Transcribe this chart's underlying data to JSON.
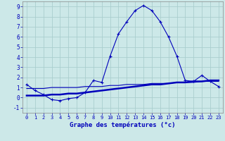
{
  "xlabel": "Graphe des températures (°c)",
  "background_color": "#cce8e8",
  "grid_color": "#aacece",
  "line_color": "#0000bb",
  "xlim": [
    -0.5,
    23.5
  ],
  "ylim": [
    -1.5,
    9.5
  ],
  "xticks": [
    0,
    1,
    2,
    3,
    4,
    5,
    6,
    7,
    8,
    9,
    10,
    11,
    12,
    13,
    14,
    15,
    16,
    17,
    18,
    19,
    20,
    21,
    22,
    23
  ],
  "yticks": [
    -1,
    0,
    1,
    2,
    3,
    4,
    5,
    6,
    7,
    8,
    9
  ],
  "line1_x": [
    0,
    1,
    2,
    3,
    4,
    5,
    6,
    7,
    8,
    9,
    10,
    11,
    12,
    13,
    14,
    15,
    16,
    17,
    18,
    19,
    20,
    21,
    22,
    23
  ],
  "line1_y": [
    1.3,
    0.7,
    0.3,
    -0.2,
    -0.3,
    -0.1,
    0.0,
    0.5,
    1.7,
    1.5,
    4.1,
    6.3,
    7.5,
    8.6,
    9.1,
    8.6,
    7.5,
    6.0,
    4.1,
    1.7,
    1.6,
    2.2,
    1.6,
    1.1
  ],
  "line2_x": [
    0,
    1,
    2,
    3,
    4,
    5,
    6,
    7,
    8,
    9,
    10,
    11,
    12,
    13,
    14,
    15,
    16,
    17,
    18,
    19,
    20,
    21,
    22,
    23
  ],
  "line2_y": [
    0.2,
    0.2,
    0.2,
    0.3,
    0.3,
    0.4,
    0.4,
    0.5,
    0.6,
    0.7,
    0.8,
    0.9,
    1.0,
    1.1,
    1.2,
    1.3,
    1.3,
    1.4,
    1.5,
    1.5,
    1.6,
    1.6,
    1.7,
    1.7
  ],
  "line3_x": [
    0,
    1,
    2,
    3,
    4,
    5,
    6,
    7,
    8,
    9,
    10,
    11,
    12,
    13,
    14,
    15,
    16,
    17,
    18,
    19,
    20,
    21,
    22,
    23
  ],
  "line3_y": [
    0.9,
    0.9,
    0.9,
    1.0,
    1.0,
    1.0,
    1.0,
    1.1,
    1.1,
    1.1,
    1.2,
    1.2,
    1.3,
    1.3,
    1.3,
    1.4,
    1.4,
    1.4,
    1.5,
    1.5,
    1.5,
    1.6,
    1.6,
    1.6
  ]
}
